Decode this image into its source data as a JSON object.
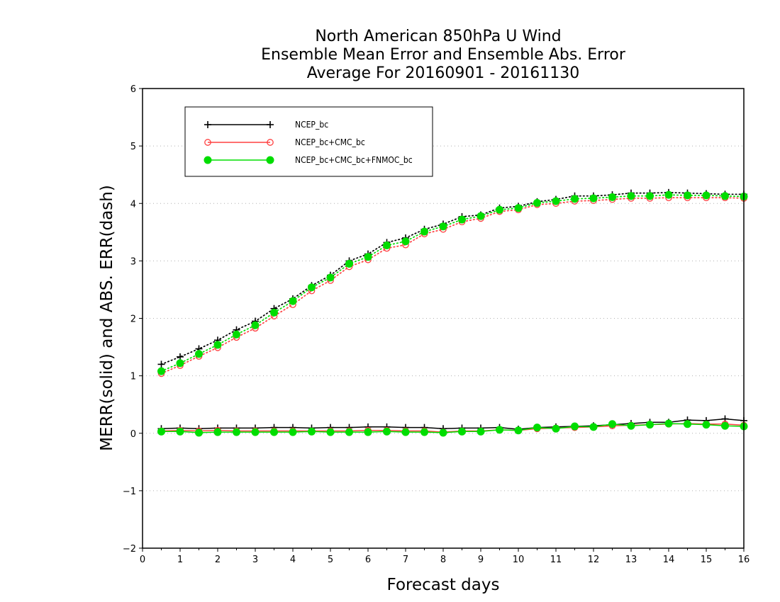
{
  "chart_data": {
    "type": "line",
    "title": [
      "North American 850hPa U Wind",
      "Ensemble Mean Error and Ensemble Abs. Error",
      "Average For 20160901 - 20161130"
    ],
    "xlabel": "Forecast days",
    "ylabel": "MERR(solid) and ABS. ERR(dash)",
    "xlim": [
      0,
      16
    ],
    "ylim": [
      -2,
      6
    ],
    "xticks": [
      "0",
      "1",
      "2",
      "3",
      "4",
      "5",
      "6",
      "7",
      "8",
      "9",
      "10",
      "11",
      "12",
      "13",
      "14",
      "15",
      "16"
    ],
    "yticks": [
      "−2",
      "−1",
      "0",
      "1",
      "2",
      "3",
      "4",
      "5",
      "6"
    ],
    "grid": "horizontal dotted",
    "legend_position": "top-left",
    "x": [
      0.5,
      1,
      1.5,
      2,
      2.5,
      3,
      3.5,
      4,
      4.5,
      5,
      5.5,
      6,
      6.5,
      7,
      7.5,
      8,
      8.5,
      9,
      9.5,
      10,
      10.5,
      11,
      11.5,
      12,
      12.5,
      13,
      13.5,
      14,
      14.5,
      15,
      15.5,
      16
    ],
    "series": [
      {
        "name": "NCEP_bc",
        "color": "#000000",
        "marker": "plus",
        "merr": [
          0.08,
          0.09,
          0.08,
          0.09,
          0.09,
          0.09,
          0.1,
          0.1,
          0.09,
          0.1,
          0.1,
          0.11,
          0.11,
          0.1,
          0.1,
          0.08,
          0.09,
          0.09,
          0.1,
          0.07,
          0.1,
          0.11,
          0.12,
          0.13,
          0.15,
          0.17,
          0.19,
          0.19,
          0.23,
          0.22,
          0.25,
          0.22
        ],
        "abs_err": [
          1.2,
          1.33,
          1.47,
          1.62,
          1.8,
          1.95,
          2.17,
          2.34,
          2.57,
          2.75,
          3.0,
          3.12,
          3.32,
          3.4,
          3.55,
          3.64,
          3.77,
          3.8,
          3.92,
          3.95,
          4.03,
          4.07,
          4.13,
          4.13,
          4.15,
          4.18,
          4.18,
          4.19,
          4.18,
          4.17,
          4.16,
          4.16
        ]
      },
      {
        "name": "NCEP_bc+CMC_bc",
        "color": "#ff4040",
        "marker": "open-circle",
        "merr": [
          0.04,
          0.05,
          0.04,
          0.05,
          0.04,
          0.04,
          0.04,
          0.04,
          0.04,
          0.04,
          0.04,
          0.05,
          0.05,
          0.04,
          0.04,
          0.02,
          0.04,
          0.04,
          0.06,
          0.05,
          0.08,
          0.09,
          0.1,
          0.11,
          0.13,
          0.14,
          0.15,
          0.16,
          0.17,
          0.16,
          0.16,
          0.14
        ],
        "abs_err": [
          1.04,
          1.18,
          1.34,
          1.49,
          1.67,
          1.83,
          2.04,
          2.24,
          2.48,
          2.66,
          2.9,
          3.02,
          3.22,
          3.28,
          3.47,
          3.55,
          3.68,
          3.74,
          3.86,
          3.89,
          3.98,
          4.0,
          4.04,
          4.05,
          4.07,
          4.09,
          4.09,
          4.1,
          4.1,
          4.1,
          4.1,
          4.09
        ]
      },
      {
        "name": "NCEP_bc+CMC_bc+FNMOC_bc",
        "color": "#00dd00",
        "marker": "filled-circle",
        "merr": [
          0.03,
          0.03,
          0.01,
          0.02,
          0.02,
          0.02,
          0.02,
          0.02,
          0.03,
          0.02,
          0.02,
          0.02,
          0.03,
          0.02,
          0.02,
          0.01,
          0.03,
          0.03,
          0.06,
          0.05,
          0.1,
          0.08,
          0.12,
          0.11,
          0.16,
          0.13,
          0.15,
          0.17,
          0.16,
          0.15,
          0.13,
          0.12
        ],
        "abs_err": [
          1.08,
          1.22,
          1.38,
          1.54,
          1.72,
          1.88,
          2.1,
          2.3,
          2.54,
          2.71,
          2.95,
          3.07,
          3.27,
          3.34,
          3.51,
          3.6,
          3.72,
          3.78,
          3.89,
          3.92,
          4.01,
          4.04,
          4.08,
          4.09,
          4.11,
          4.13,
          4.13,
          4.15,
          4.14,
          4.14,
          4.13,
          4.12
        ]
      }
    ]
  }
}
